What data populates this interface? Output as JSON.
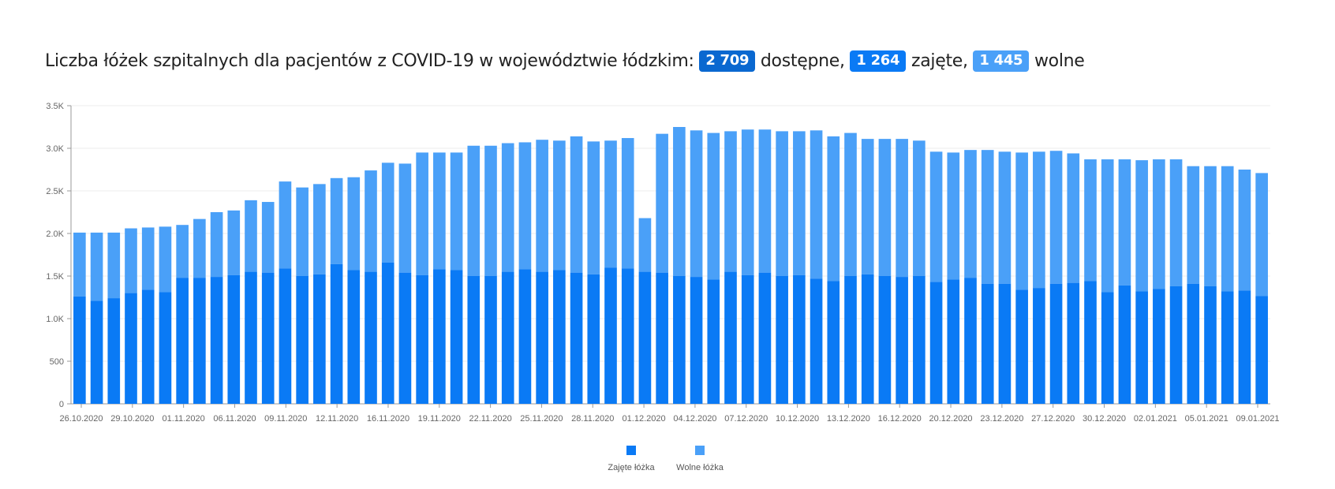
{
  "header": {
    "prefix": "Liczba łóżek szpitalnych dla pacjentów z COVID-19 w województwie łódzkim:",
    "available_value": "2 709",
    "available_label": "dostępne,",
    "occupied_value": "1 264",
    "occupied_label": "zajęte,",
    "free_value": "1 445",
    "free_label": "wolne"
  },
  "colors": {
    "available_badge": "#0a68d0",
    "occupied": "#0a7af5",
    "free": "#4aa0f8"
  },
  "chart_data": {
    "type": "bar",
    "stacked": true,
    "ylim": [
      0,
      3500
    ],
    "y_ticks": [
      0,
      500,
      1000,
      1500,
      2000,
      2500,
      3000,
      3500
    ],
    "y_tick_labels": [
      "0",
      "500",
      "1.0K",
      "1.5K",
      "2.0K",
      "2.5K",
      "3.0K",
      "3.5K"
    ],
    "x_tick_labels": [
      "26.10.2020",
      "29.10.2020",
      "01.11.2020",
      "06.11.2020",
      "09.11.2020",
      "12.11.2020",
      "16.11.2020",
      "19.11.2020",
      "22.11.2020",
      "25.11.2020",
      "28.11.2020",
      "01.12.2020",
      "04.12.2020",
      "07.12.2020",
      "10.12.2020",
      "13.12.2020",
      "16.12.2020",
      "20.12.2020",
      "23.12.2020",
      "27.12.2020",
      "30.12.2020",
      "02.01.2021",
      "05.01.2021",
      "09.01.2021"
    ],
    "legend_position": "bottom-center",
    "series": [
      {
        "name": "Zajęte łóżka",
        "color": "#0a7af5",
        "values": [
          1260,
          1210,
          1240,
          1300,
          1340,
          1310,
          1480,
          1480,
          1490,
          1510,
          1550,
          1540,
          1590,
          1500,
          1520,
          1640,
          1570,
          1550,
          1660,
          1540,
          1510,
          1580,
          1570,
          1500,
          1500,
          1550,
          1580,
          1550,
          1570,
          1540,
          1520,
          1600,
          1590,
          1550,
          1540,
          1500,
          1490,
          1460,
          1550,
          1510,
          1540,
          1500,
          1510,
          1470,
          1440,
          1500,
          1520,
          1500,
          1490,
          1500,
          1430,
          1460,
          1480,
          1410,
          1410,
          1340,
          1360,
          1410,
          1420,
          1440,
          1310,
          1390,
          1320,
          1350,
          1380,
          1410,
          1380,
          1320,
          1330,
          1264
        ]
      },
      {
        "name": "Wolne łóżka",
        "color": "#4aa0f8",
        "values": [
          750,
          800,
          770,
          760,
          730,
          770,
          620,
          690,
          760,
          760,
          840,
          830,
          1020,
          1040,
          1060,
          1010,
          1090,
          1190,
          1170,
          1280,
          1440,
          1370,
          1380,
          1530,
          1530,
          1510,
          1490,
          1550,
          1520,
          1600,
          1560,
          1490,
          1530,
          630,
          1630,
          1750,
          1720,
          1720,
          1650,
          1710,
          1680,
          1700,
          1690,
          1740,
          1700,
          1680,
          1590,
          1610,
          1620,
          1590,
          1530,
          1490,
          1500,
          1570,
          1550,
          1610,
          1600,
          1560,
          1520,
          1430,
          1560,
          1480,
          1540,
          1520,
          1490,
          1380,
          1410,
          1470,
          1420,
          1445
        ]
      }
    ]
  }
}
